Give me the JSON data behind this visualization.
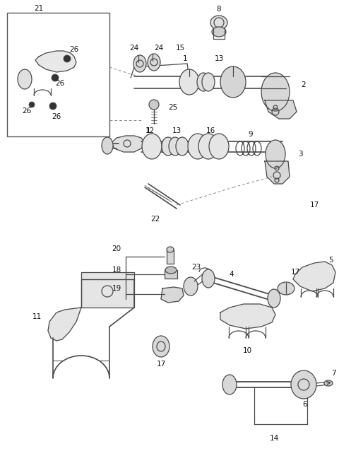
{
  "bg_color": "#ffffff",
  "line_color": "#4a4a4a",
  "label_color": "#111111",
  "figsize": [
    4.8,
    6.45
  ],
  "dpi": 100
}
